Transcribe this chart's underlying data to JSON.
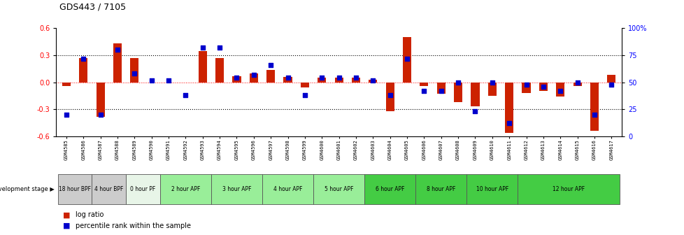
{
  "title": "GDS443 / 7105",
  "samples": [
    "GSM4585",
    "GSM4586",
    "GSM4587",
    "GSM4588",
    "GSM4589",
    "GSM4590",
    "GSM4591",
    "GSM4592",
    "GSM4593",
    "GSM4594",
    "GSM4595",
    "GSM4596",
    "GSM4597",
    "GSM4598",
    "GSM4599",
    "GSM4600",
    "GSM4601",
    "GSM4602",
    "GSM4603",
    "GSM4604",
    "GSM4605",
    "GSM4606",
    "GSM4607",
    "GSM4608",
    "GSM4609",
    "GSM4610",
    "GSM4611",
    "GSM4612",
    "GSM4613",
    "GSM4614",
    "GSM4615",
    "GSM4616",
    "GSM4617"
  ],
  "log_ratio": [
    -0.04,
    0.27,
    -0.38,
    0.43,
    0.27,
    0.0,
    0.0,
    0.0,
    0.35,
    0.27,
    0.07,
    0.1,
    0.14,
    0.06,
    -0.06,
    0.05,
    0.05,
    0.05,
    0.03,
    -0.32,
    0.5,
    -0.04,
    -0.13,
    -0.22,
    -0.27,
    -0.15,
    -0.56,
    -0.12,
    -0.1,
    -0.16,
    -0.04,
    -0.54,
    0.08
  ],
  "percentile": [
    20,
    72,
    20,
    80,
    58,
    52,
    52,
    38,
    82,
    82,
    54,
    57,
    66,
    54,
    38,
    54,
    54,
    54,
    52,
    38,
    72,
    42,
    42,
    50,
    23,
    50,
    12,
    48,
    46,
    42,
    50,
    20,
    48
  ],
  "stages": [
    {
      "label": "18 hour BPF",
      "start": 0,
      "end": 2,
      "color": "#cccccc"
    },
    {
      "label": "4 hour BPF",
      "start": 2,
      "end": 4,
      "color": "#cccccc"
    },
    {
      "label": "0 hour PF",
      "start": 4,
      "end": 6,
      "color": "#e8f5e8"
    },
    {
      "label": "2 hour APF",
      "start": 6,
      "end": 9,
      "color": "#99ee99"
    },
    {
      "label": "3 hour APF",
      "start": 9,
      "end": 12,
      "color": "#99ee99"
    },
    {
      "label": "4 hour APF",
      "start": 12,
      "end": 15,
      "color": "#99ee99"
    },
    {
      "label": "5 hour APF",
      "start": 15,
      "end": 18,
      "color": "#99ee99"
    },
    {
      "label": "6 hour APF",
      "start": 18,
      "end": 21,
      "color": "#44cc44"
    },
    {
      "label": "8 hour APF",
      "start": 21,
      "end": 24,
      "color": "#44cc44"
    },
    {
      "label": "10 hour APF",
      "start": 24,
      "end": 27,
      "color": "#44cc44"
    },
    {
      "label": "12 hour APF",
      "start": 27,
      "end": 33,
      "color": "#44cc44"
    }
  ],
  "bar_color": "#cc2200",
  "dot_color": "#0000cc",
  "ylim": [
    -0.6,
    0.6
  ],
  "y2lim": [
    0,
    100
  ],
  "yticks_left": [
    -0.6,
    -0.3,
    0.0,
    0.3,
    0.6
  ],
  "yticks_right": [
    0,
    25,
    50,
    75,
    100
  ],
  "bar_width": 0.5,
  "dot_size": 14,
  "bg_color": "#ffffff"
}
